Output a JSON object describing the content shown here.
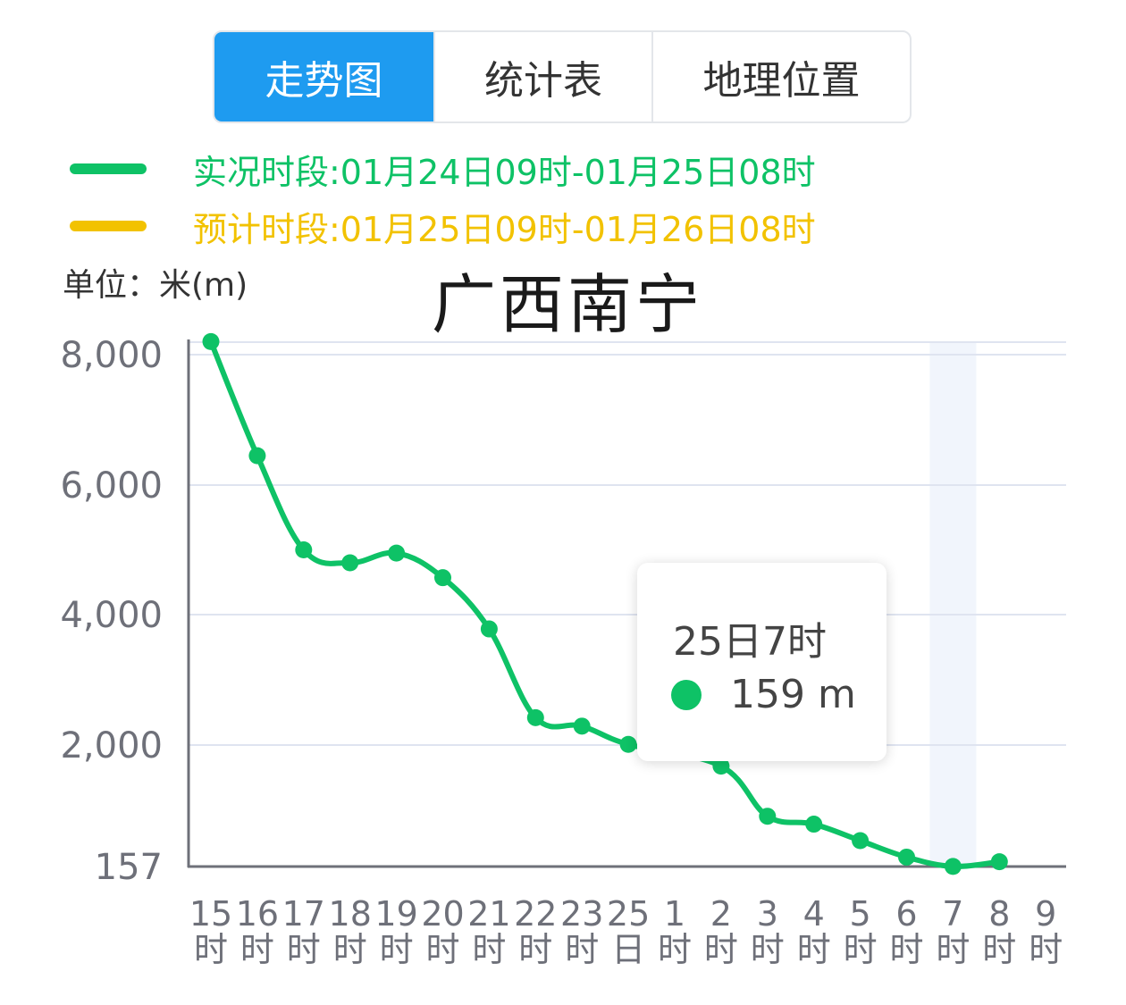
{
  "tabs": [
    {
      "label": "走势图",
      "active": true
    },
    {
      "label": "统计表",
      "active": false
    },
    {
      "label": "地理位置",
      "active": false
    }
  ],
  "legend": {
    "observed": {
      "label": "实况时段:01月24日09时-01月25日08时",
      "color": "#0ec266"
    },
    "forecast": {
      "label": "预计时段:01月25日09时-01月26日08时",
      "color": "#f2c200"
    }
  },
  "unit_label": "单位：米(m)",
  "chart_data": {
    "type": "line",
    "title": "广西南宁",
    "ylabel": "单位：米(m)",
    "y_ticks": [
      157,
      2000,
      4000,
      6000,
      8000
    ],
    "y_tick_labels": [
      "157",
      "2,000",
      "4,000",
      "6,000",
      "8,000"
    ],
    "ylim": [
      157,
      8200
    ],
    "grid": true,
    "categories": [
      [
        "15",
        "时"
      ],
      [
        "16",
        "时"
      ],
      [
        "17",
        "时"
      ],
      [
        "18",
        "时"
      ],
      [
        "19",
        "时"
      ],
      [
        "20",
        "时"
      ],
      [
        "21",
        "时"
      ],
      [
        "22",
        "时"
      ],
      [
        "23",
        "时"
      ],
      [
        "25",
        "日"
      ],
      [
        "1",
        "时"
      ],
      [
        "2",
        "时"
      ],
      [
        "3",
        "时"
      ],
      [
        "4",
        "时"
      ],
      [
        "5",
        "时"
      ],
      [
        "6",
        "时"
      ],
      [
        "7",
        "时"
      ],
      [
        "8",
        "时"
      ],
      [
        "9",
        "时"
      ]
    ],
    "series": [
      {
        "color": "#0ec266",
        "values": [
          8200,
          6450,
          5000,
          4800,
          4950,
          4570,
          3780,
          2420,
          2290,
          2010,
          null,
          1680,
          920,
          800,
          550,
          300,
          159,
          230,
          null
        ]
      }
    ],
    "highlight_index": 16
  },
  "tooltip": {
    "title": "25日7时",
    "value_text": "159 m",
    "color": "#0ec266"
  }
}
